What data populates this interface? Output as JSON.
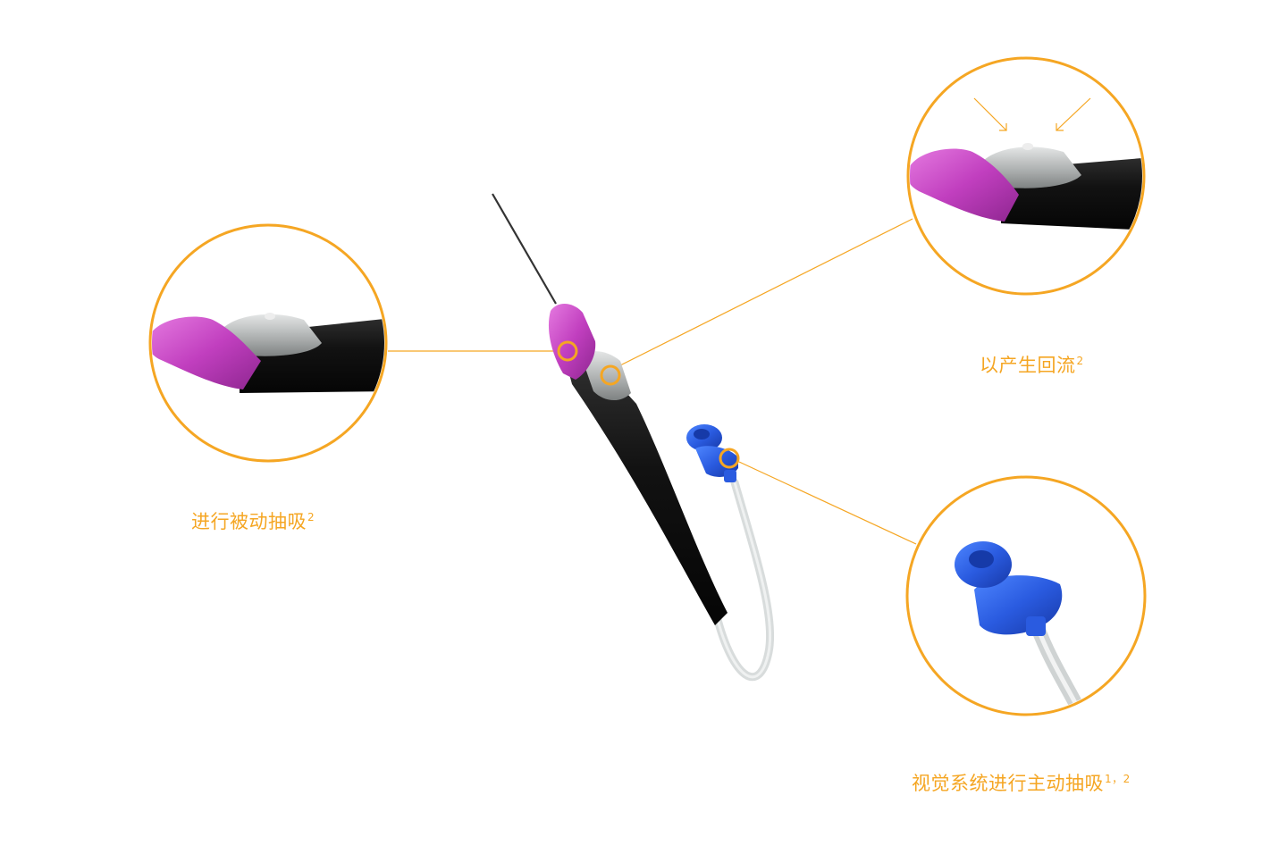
{
  "colors": {
    "accent": "#F5A623",
    "hub_magenta": "#C13FBF",
    "body_black": "#131313",
    "connector_blue": "#2A5BE0",
    "tube_gray": "#D8DCDC",
    "chamber_gray": "#B4B6B6"
  },
  "callouts": {
    "passive": {
      "text": "进行被动抽吸",
      "ref": "2"
    },
    "backflow": {
      "text": "以产生回流",
      "ref": "2"
    },
    "active": {
      "text": "视觉系统进行主动抽吸",
      "ref": "1，2"
    }
  },
  "icons": {
    "needle": "needle-icon",
    "connector": "blue-luer-connector-icon",
    "markers": "ring-marker-icon"
  }
}
